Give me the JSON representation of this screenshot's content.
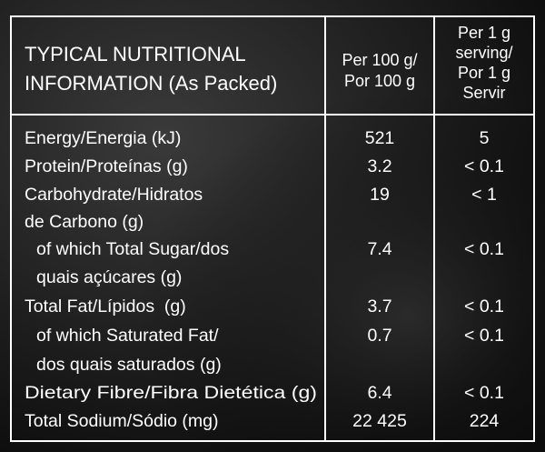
{
  "header": {
    "title": [
      "TYPICAL NUTRITIONAL",
      "INFORMATION (As Packed)"
    ],
    "per100g": [
      "Per 100 g/",
      "Por 100 g"
    ],
    "perServing": [
      "Per 1 g",
      "serving/",
      "Por 1 g",
      "Servir"
    ]
  },
  "rows": [
    {
      "label": [
        "Energy/Energia (kJ)"
      ],
      "per100g": "521",
      "perServing": "5"
    },
    {
      "label": [
        "Protein/Proteínas (g)"
      ],
      "per100g": "3.2",
      "perServing": "< 0.1"
    },
    {
      "label": [
        "Carbohydrate/Hidratos",
        "de Carbono (g)"
      ],
      "per100g": "19",
      "perServing": "< 1"
    },
    {
      "label": [
        "of which Total Sugar/dos",
        "quais açúcares (g)"
      ],
      "per100g": "7.4",
      "perServing": "< 0.1"
    },
    {
      "label": [
        "Total Fat/Lípidos  (g)"
      ],
      "per100g": "3.7",
      "perServing": "< 0.1"
    },
    {
      "label": [
        "of which Saturated Fat/",
        "dos quais saturados (g)"
      ],
      "per100g": "0.7",
      "perServing": "< 0.1"
    },
    {
      "label": [
        "Dietary Fibre/Fibra Dietética (g)"
      ],
      "per100g": "6.4",
      "perServing": "< 0.1"
    },
    {
      "label": [
        "Total Sodium/Sódio (mg)"
      ],
      "per100g": "22 425",
      "perServing": "224"
    }
  ]
}
